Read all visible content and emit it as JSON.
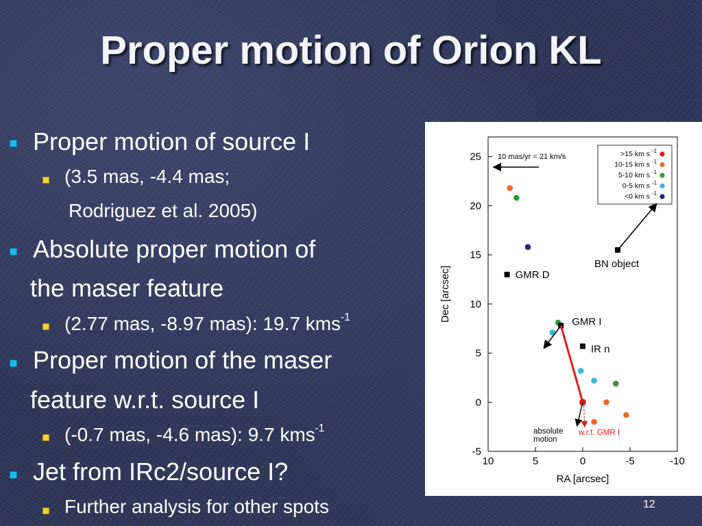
{
  "slide": {
    "title": "Proper motion of Orion KL",
    "page_number": "12"
  },
  "bullets": [
    {
      "level": 1,
      "text": "Proper motion of source I"
    },
    {
      "level": 2,
      "text": "(3.5 mas, -4.4 mas;"
    },
    {
      "level": 2,
      "text": "Rodriguez et al. 2005)",
      "continuation": true
    },
    {
      "level": 1,
      "text": "Absolute proper motion of"
    },
    {
      "level": 1,
      "text": "the maser feature",
      "continuation": true
    },
    {
      "level": 2,
      "text": "(2.77 mas, -8.97 mas): 19.7 kms",
      "sup": "-1"
    },
    {
      "level": 1,
      "text": "Proper motion of the maser"
    },
    {
      "level": 1,
      "text": "feature w.r.t. source I",
      "continuation": true
    },
    {
      "level": 2,
      "text": "(-0.7 mas, -4.6 mas): 9.7 kms",
      "sup": "-1"
    },
    {
      "level": 1,
      "text": "Jet from IRc2/source I?"
    },
    {
      "level": 2,
      "text": "Further analysis for other spots"
    }
  ],
  "colors": {
    "bullet_level1": "#1fb8ee",
    "bullet_level2": "#f2d13b",
    "background": "#2e3658",
    "red": "#e31a1c",
    "orange": "#ee6a2a",
    "green": "#2f9a3c",
    "cyan": "#3bb5dc",
    "navy": "#1f237a"
  },
  "chart_data": {
    "type": "scatter",
    "xlabel": "RA [arcsec]",
    "ylabel": "Dec [arcsec]",
    "xlim": [
      10,
      -10
    ],
    "ylim": [
      -5,
      27
    ],
    "x_ticks": [
      10,
      5,
      0,
      -5,
      -10
    ],
    "y_ticks": [
      -5,
      0,
      5,
      10,
      15,
      20,
      25
    ],
    "scale_label": "10 mas/yr = 21 km/s",
    "legend_position": "top-right",
    "legend": [
      {
        "label": ">15 km s",
        "sup": "-1",
        "color": "#e31a1c"
      },
      {
        "label": "10-15 km s",
        "sup": "-1",
        "color": "#ee6a2a"
      },
      {
        "label": "5-10 km s",
        "sup": "-1",
        "color": "#2f9a3c"
      },
      {
        "label": "0-5 km s",
        "sup": "-1",
        "color": "#3bb5dc"
      },
      {
        "label": "<0 km s",
        "sup": "-1",
        "color": "#1f237a"
      }
    ],
    "points": [
      {
        "x": 7.7,
        "y": 21.8,
        "color": "#ee6a2a"
      },
      {
        "x": 7.0,
        "y": 20.8,
        "color": "#2f9a3c"
      },
      {
        "x": 5.8,
        "y": 15.8,
        "color": "#1f237a"
      },
      {
        "x": 2.6,
        "y": 8.1,
        "color": "#2f9a3c"
      },
      {
        "x": 3.2,
        "y": 7.1,
        "color": "#3bb5dc"
      },
      {
        "x": 0.2,
        "y": 3.2,
        "color": "#3bb5dc"
      },
      {
        "x": -1.2,
        "y": 2.2,
        "color": "#3bb5dc"
      },
      {
        "x": -3.5,
        "y": 1.9,
        "color": "#2f9a3c"
      },
      {
        "x": -2.5,
        "y": 0.0,
        "color": "#ee6a2a"
      },
      {
        "x": -4.6,
        "y": -1.3,
        "color": "#ee6a2a"
      },
      {
        "x": -1.2,
        "y": -2.0,
        "color": "#ee6a2a"
      },
      {
        "x": 0.0,
        "y": 0.0,
        "color": "#e31a1c"
      }
    ],
    "sources": [
      {
        "name": "GMR D",
        "x": 8.0,
        "y": 13.0
      },
      {
        "name": "BN object",
        "x": -3.7,
        "y": 15.5
      },
      {
        "name": "GMR I",
        "x": 2.3,
        "y": 7.8
      },
      {
        "name": "IR n",
        "x": 0.0,
        "y": 5.7
      }
    ],
    "annotations": {
      "absolute_motion": "absolute\nmotion",
      "wrt_gmr_i": "w.r.t. GMR I"
    }
  }
}
